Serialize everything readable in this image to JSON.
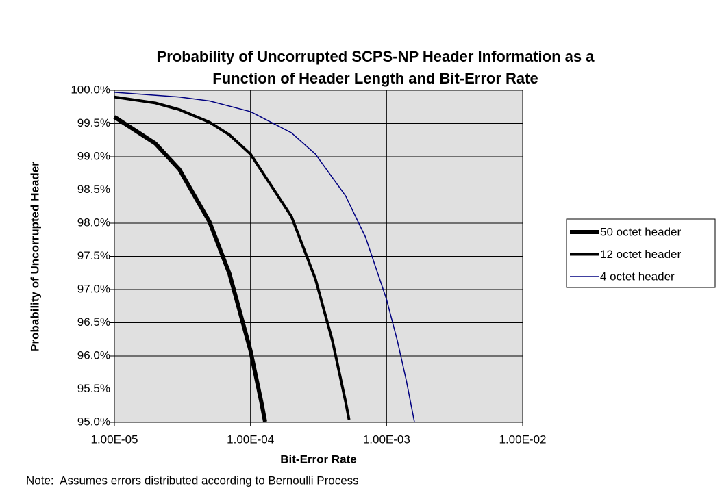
{
  "chart_data": {
    "type": "line",
    "title": [
      "Probability of Uncorrupted SCPS-NP Header Information as a",
      "Function of Header Length and Bit-Error Rate"
    ],
    "x_label": "Bit-Error Rate",
    "y_label": "Probability of Uncorrupted Header",
    "note": "Note:  Assumes errors distributed according to Bernoulli Process",
    "xscale": "log",
    "xlim": [
      1e-05,
      0.01
    ],
    "xticks": [
      {
        "value": 1e-05,
        "label": "1.00E-05"
      },
      {
        "value": 0.0001,
        "label": "1.00E-04"
      },
      {
        "value": 0.001,
        "label": "1.00E-03"
      },
      {
        "value": 0.01,
        "label": "1.00E-02"
      }
    ],
    "ylim": [
      95,
      100
    ],
    "yticks": [
      {
        "value": 95,
        "label": "95.0%"
      },
      {
        "value": 95.5,
        "label": "95.5%"
      },
      {
        "value": 96,
        "label": "96.0%"
      },
      {
        "value": 96.5,
        "label": "96.5%"
      },
      {
        "value": 97,
        "label": "97.0%"
      },
      {
        "value": 97.5,
        "label": "97.5%"
      },
      {
        "value": 98,
        "label": "98.0%"
      },
      {
        "value": 98.5,
        "label": "98.5%"
      },
      {
        "value": 99,
        "label": "99.0%"
      },
      {
        "value": 99.5,
        "label": "99.5%"
      },
      {
        "value": 100,
        "label": "100.0%"
      }
    ],
    "grid": true,
    "plot_background": "#e0e0e0",
    "legend": "right",
    "series": [
      {
        "name": "50 octet header",
        "color": "#000000",
        "line_width": 6,
        "x": [
          1e-05,
          2e-05,
          3e-05,
          5e-05,
          7e-05,
          0.0001,
          0.00012,
          0.000128
        ],
        "values": [
          99.6,
          99.2,
          98.81,
          98.02,
          97.24,
          96.08,
          95.31,
          95.01
        ]
      },
      {
        "name": "12 octet header",
        "color": "#000000",
        "line_width": 4,
        "x": [
          1e-05,
          2e-05,
          3e-05,
          5e-05,
          7e-05,
          0.0001,
          0.0002,
          0.0003,
          0.0004,
          0.0005,
          0.00053
        ],
        "values": [
          99.9,
          99.81,
          99.71,
          99.52,
          99.33,
          99.04,
          98.1,
          97.16,
          96.23,
          95.31,
          95.04
        ]
      },
      {
        "name": "4 octet header",
        "color": "#000080",
        "line_width": 1.5,
        "x": [
          1e-05,
          3e-05,
          5e-05,
          0.0001,
          0.0002,
          0.0003,
          0.0005,
          0.0007,
          0.001,
          0.0012,
          0.0014,
          0.0016
        ],
        "values": [
          99.97,
          99.9,
          99.84,
          99.68,
          99.36,
          99.04,
          98.41,
          97.79,
          96.85,
          96.23,
          95.62,
          95.01
        ]
      }
    ]
  }
}
